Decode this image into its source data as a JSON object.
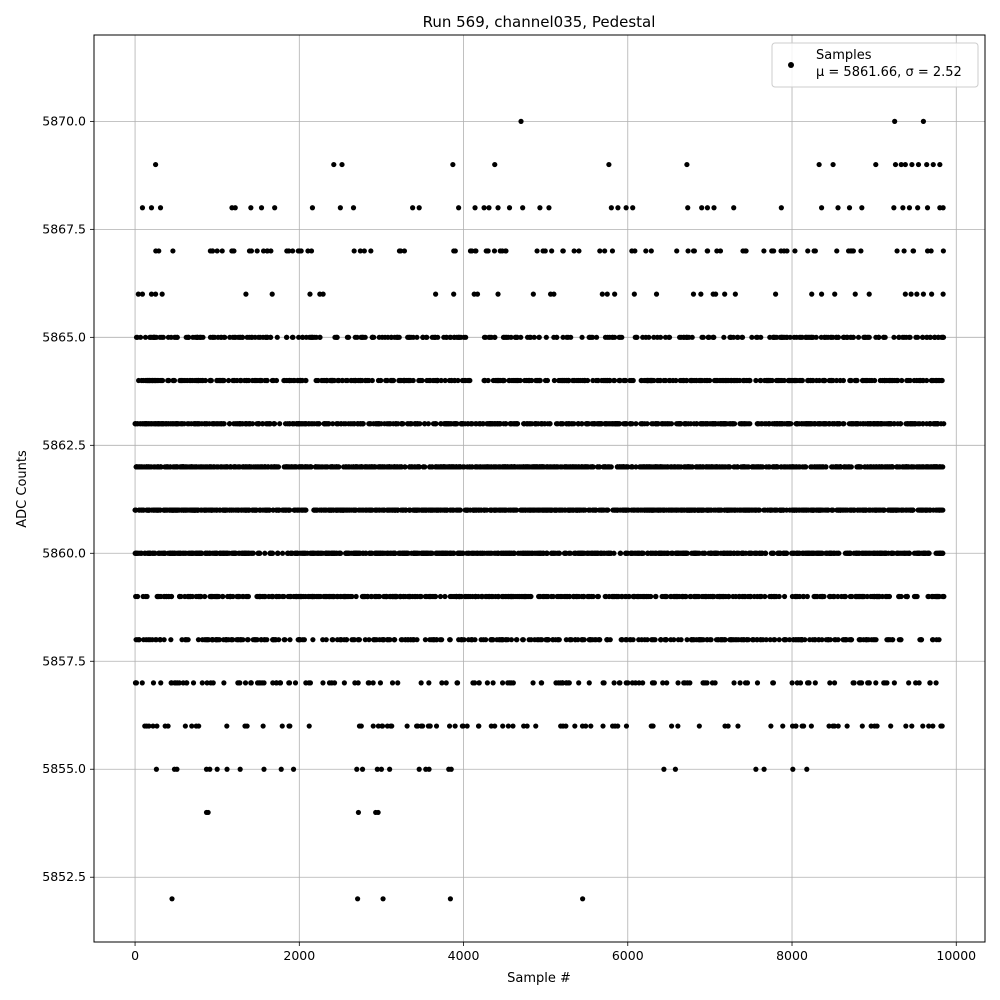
{
  "chart_data": {
    "type": "scatter",
    "title": "Run 569, channel035, Pedestal",
    "xlabel": "Sample #",
    "ylabel": "ADC Counts",
    "xlim": [
      -500,
      10350
    ],
    "ylim": [
      5851.0,
      5872.0
    ],
    "xticks": [
      0,
      2000,
      4000,
      6000,
      8000,
      10000
    ],
    "xtick_labels": [
      "0",
      "2000",
      "4000",
      "6000",
      "8000",
      "10000"
    ],
    "yticks": [
      5852.5,
      5855.0,
      5857.5,
      5860.0,
      5862.5,
      5865.0,
      5867.5,
      5870.0
    ],
    "ytick_labels": [
      "5852.5",
      "5855.0",
      "5857.5",
      "5860.0",
      "5862.5",
      "5865.0",
      "5867.5",
      "5870.0"
    ],
    "grid": true,
    "legend_position": "top-right",
    "n_samples": 9850,
    "series": [
      {
        "name": "Samples",
        "color": "#000000",
        "marker": "circle",
        "level_density": [
          {
            "y": 5852,
            "fraction": 0.0008
          },
          {
            "y": 5854,
            "fraction": 0.0008
          },
          {
            "y": 5855,
            "fraction": 0.003
          },
          {
            "y": 5856,
            "fraction": 0.018
          },
          {
            "y": 5857,
            "fraction": 0.028
          },
          {
            "y": 5858,
            "fraction": 0.07
          },
          {
            "y": 5859,
            "fraction": 0.1
          },
          {
            "y": 5860,
            "fraction": 0.15
          },
          {
            "y": 5861,
            "fraction": 0.16
          },
          {
            "y": 5862,
            "fraction": 0.16
          },
          {
            "y": 5863,
            "fraction": 0.13
          },
          {
            "y": 5864,
            "fraction": 0.09
          },
          {
            "y": 5865,
            "fraction": 0.06
          },
          {
            "y": 5866,
            "fraction": 0.012
          },
          {
            "y": 5867,
            "fraction": 0.018
          },
          {
            "y": 5868,
            "fraction": 0.009
          },
          {
            "y": 5869,
            "fraction": 0.003
          },
          {
            "y": 5870,
            "fraction": 0.0004
          }
        ],
        "points": [
          [
            450,
            5852
          ],
          [
            2710,
            5852
          ],
          [
            3020,
            5852
          ],
          [
            3840,
            5852
          ],
          [
            5450,
            5852
          ],
          [
            870,
            5854
          ],
          [
            890,
            5854
          ],
          [
            2720,
            5854
          ],
          [
            2930,
            5854
          ],
          [
            2960,
            5854
          ],
          [
            260,
            5855
          ],
          [
            480,
            5855
          ],
          [
            510,
            5855
          ],
          [
            870,
            5855
          ],
          [
            910,
            5855
          ],
          [
            1000,
            5855
          ],
          [
            1120,
            5855
          ],
          [
            1280,
            5855
          ],
          [
            1570,
            5855
          ],
          [
            1780,
            5855
          ],
          [
            1930,
            5855
          ],
          [
            2700,
            5855
          ],
          [
            2770,
            5855
          ],
          [
            2950,
            5855
          ],
          [
            3000,
            5855
          ],
          [
            3100,
            5855
          ],
          [
            3460,
            5855
          ],
          [
            3540,
            5855
          ],
          [
            3580,
            5855
          ],
          [
            3820,
            5855
          ],
          [
            3850,
            5855
          ],
          [
            6440,
            5855
          ],
          [
            6580,
            5855
          ],
          [
            7560,
            5855
          ],
          [
            7660,
            5855
          ],
          [
            8010,
            5855
          ],
          [
            8180,
            5855
          ],
          [
            4700,
            5870
          ],
          [
            9250,
            5870
          ],
          [
            9600,
            5870
          ],
          [
            250,
            5869
          ],
          [
            2420,
            5869
          ],
          [
            2520,
            5869
          ],
          [
            3870,
            5869
          ],
          [
            4380,
            5869
          ],
          [
            5770,
            5869
          ],
          [
            6720,
            5869
          ],
          [
            8330,
            5869
          ],
          [
            8500,
            5869
          ],
          [
            9020,
            5869
          ],
          [
            9260,
            5869
          ],
          [
            9330,
            5869
          ],
          [
            9380,
            5869
          ],
          [
            9460,
            5869
          ],
          [
            9540,
            5869
          ],
          [
            9640,
            5869
          ],
          [
            9720,
            5869
          ],
          [
            9800,
            5869
          ],
          [
            90,
            5868
          ],
          [
            200,
            5868
          ],
          [
            310,
            5868
          ],
          [
            1180,
            5868
          ],
          [
            1220,
            5868
          ],
          [
            1410,
            5868
          ],
          [
            1540,
            5868
          ],
          [
            1700,
            5868
          ],
          [
            2160,
            5868
          ],
          [
            2500,
            5868
          ],
          [
            2660,
            5868
          ],
          [
            3380,
            5868
          ],
          [
            3460,
            5868
          ],
          [
            3940,
            5868
          ],
          [
            4140,
            5868
          ],
          [
            4250,
            5868
          ],
          [
            4310,
            5868
          ],
          [
            4420,
            5868
          ],
          [
            4560,
            5868
          ],
          [
            4720,
            5868
          ],
          [
            4930,
            5868
          ],
          [
            5040,
            5868
          ],
          [
            5800,
            5868
          ],
          [
            5880,
            5868
          ],
          [
            5980,
            5868
          ],
          [
            6060,
            5868
          ],
          [
            6730,
            5868
          ],
          [
            6900,
            5868
          ],
          [
            6970,
            5868
          ],
          [
            7050,
            5868
          ],
          [
            7290,
            5868
          ],
          [
            7870,
            5868
          ],
          [
            8360,
            5868
          ],
          [
            8560,
            5868
          ],
          [
            8700,
            5868
          ],
          [
            8850,
            5868
          ],
          [
            9240,
            5868
          ],
          [
            9350,
            5868
          ],
          [
            9430,
            5868
          ],
          [
            9530,
            5868
          ],
          [
            9650,
            5868
          ],
          [
            9800,
            5868
          ],
          [
            9840,
            5868
          ],
          [
            40,
            5866
          ],
          [
            90,
            5866
          ],
          [
            200,
            5866
          ],
          [
            250,
            5866
          ],
          [
            330,
            5866
          ],
          [
            1350,
            5866
          ],
          [
            1670,
            5866
          ],
          [
            2130,
            5866
          ],
          [
            2250,
            5866
          ],
          [
            2290,
            5866
          ],
          [
            3660,
            5866
          ],
          [
            3880,
            5866
          ],
          [
            4130,
            5866
          ],
          [
            4170,
            5866
          ],
          [
            4420,
            5866
          ],
          [
            4850,
            5866
          ],
          [
            5060,
            5866
          ],
          [
            5100,
            5866
          ],
          [
            5690,
            5866
          ],
          [
            5750,
            5866
          ],
          [
            5840,
            5866
          ],
          [
            6080,
            5866
          ],
          [
            6350,
            5866
          ],
          [
            6800,
            5866
          ],
          [
            6890,
            5866
          ],
          [
            7040,
            5866
          ],
          [
            7070,
            5866
          ],
          [
            7180,
            5866
          ],
          [
            7310,
            5866
          ],
          [
            7800,
            5866
          ],
          [
            8240,
            5866
          ],
          [
            8360,
            5866
          ],
          [
            8520,
            5866
          ],
          [
            8770,
            5866
          ],
          [
            8940,
            5866
          ],
          [
            9380,
            5866
          ],
          [
            9450,
            5866
          ],
          [
            9520,
            5866
          ],
          [
            9600,
            5866
          ],
          [
            9700,
            5866
          ],
          [
            9840,
            5866
          ]
        ]
      }
    ]
  },
  "legend": {
    "label": "Samples",
    "stats": "μ = 5861.66, σ = 2.52"
  }
}
